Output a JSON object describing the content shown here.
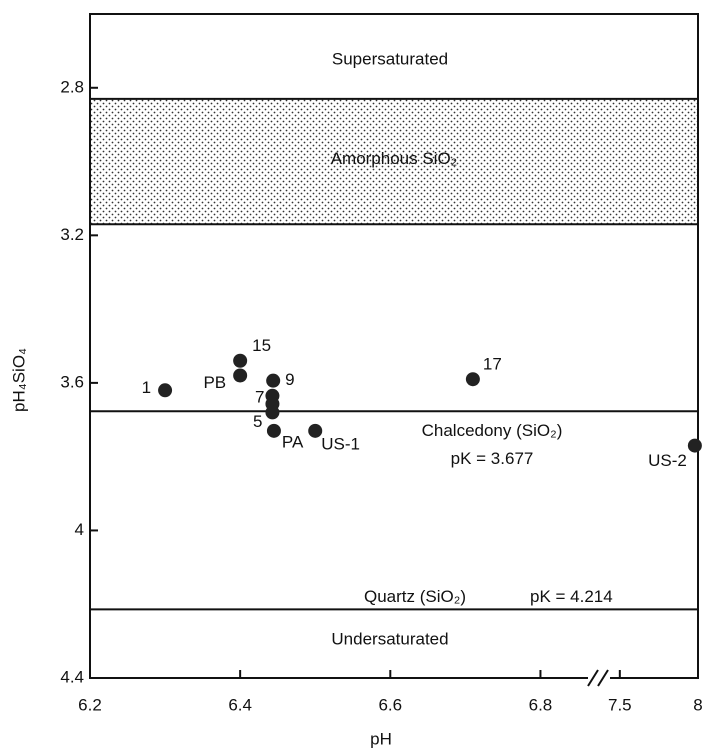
{
  "chart_data": {
    "type": "scatter",
    "xlabel": "pH",
    "ylabel": "pH₄SiO₄",
    "x": [
      6.3,
      6.4,
      6.4,
      6.444,
      6.443,
      6.443,
      6.443,
      6.445,
      6.5,
      6.71,
      7.98
    ],
    "values": [
      3.62,
      3.54,
      3.58,
      3.594,
      3.635,
      3.657,
      3.68,
      3.73,
      3.73,
      3.59,
      3.77
    ],
    "point_labels": [
      "1",
      "15",
      "PB",
      "9",
      "7",
      null,
      "5",
      "PA",
      "US-1",
      "17",
      "US-2"
    ],
    "color": "#222222",
    "xlim": [
      6.2,
      8.0
    ],
    "x_break": [
      6.87,
      7.45
    ],
    "xticks": [
      6.2,
      6.4,
      6.6,
      6.8,
      7.5,
      8.0
    ],
    "ylim": [
      2.6,
      4.4
    ],
    "y_inverted": true,
    "yticks": [
      2.8,
      3.2,
      3.6,
      4.0,
      4.4
    ],
    "band": {
      "name": "Amorphous SiO₂",
      "range": [
        2.83,
        3.17
      ]
    },
    "reference_lines": [
      {
        "name": "Chalcedony (SiO₂)",
        "label": "pK = 3.677",
        "value": 3.677
      },
      {
        "name": "Quartz (SiO₂)",
        "label": "pK = 4.214",
        "value": 4.214
      }
    ],
    "annotations": [
      "Supersaturated",
      "Undersaturated"
    ]
  }
}
